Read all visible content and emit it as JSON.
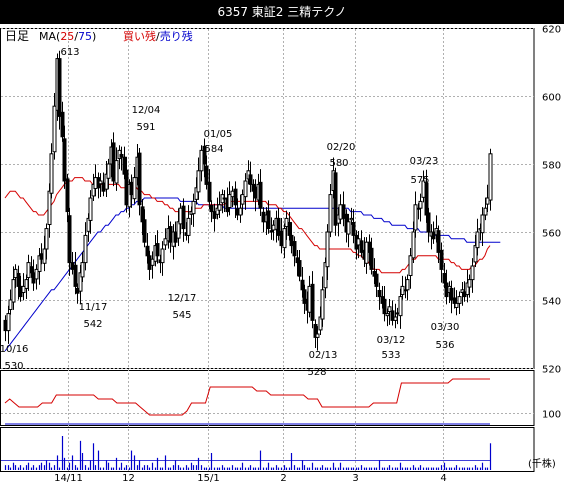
{
  "title": "6357 東証2 三精テクノ",
  "legend": {
    "period": "日足",
    "ma_prefix": "MA(",
    "ma_short": "25",
    "ma_sep": "/",
    "ma_long": "75",
    "ma_suffix": ")",
    "buy_label": "買い残",
    "sell_label": "売り残"
  },
  "colors": {
    "candle": "#000000",
    "ma_short": "#d40000",
    "ma_long": "#0000cc",
    "buy": "#d40000",
    "sell": "#0000cc",
    "volume": "#0000cc",
    "grid": "#b0b0b0"
  },
  "volume_unit": "(千株)",
  "chart_data": {
    "type": "candlestick",
    "price_axis": {
      "ticks": [
        620,
        600,
        580,
        560,
        540,
        520
      ],
      "range": [
        520,
        620
      ]
    },
    "margin_axis": {
      "ticks": [
        100
      ]
    },
    "x_tick_labels": [
      "14/11",
      "12",
      "15/1",
      "2",
      "3",
      "4"
    ],
    "series": [
      {
        "name": "日足",
        "close": [
          531,
          536,
          540,
          546,
          549,
          544,
          541,
          544,
          546,
          551,
          548,
          545,
          549,
          553,
          552,
          555,
          561,
          572,
          583,
          597,
          611,
          594,
          588,
          575,
          566,
          551,
          549,
          544,
          542,
          548,
          551,
          559,
          564,
          570,
          574,
          576,
          573,
          575,
          572,
          577,
          580,
          585,
          575,
          581,
          584,
          582,
          577,
          568,
          574,
          571,
          576,
          582,
          568,
          563,
          557,
          553,
          549,
          552,
          556,
          553,
          551,
          555,
          558,
          561,
          557,
          560,
          557,
          563,
          567,
          561,
          559,
          564,
          566,
          569,
          573,
          578,
          584,
          580,
          574,
          569,
          566,
          564,
          567,
          568,
          571,
          570,
          566,
          571,
          572,
          568,
          565,
          567,
          571,
          575,
          578,
          574,
          572,
          570,
          574,
          567,
          563,
          565,
          561,
          560,
          562,
          564,
          559,
          556,
          561,
          564,
          559,
          556,
          553,
          551,
          547,
          543,
          539,
          537,
          544,
          534,
          529,
          530,
          535,
          543,
          551,
          560,
          571,
          578,
          562,
          565,
          568,
          564,
          560,
          563,
          564,
          559,
          555,
          558,
          554,
          552,
          557,
          554,
          549,
          547,
          544,
          541,
          539,
          536,
          536,
          538,
          534,
          535,
          536,
          541,
          544,
          543,
          546,
          553,
          560,
          568,
          567,
          569,
          575,
          565,
          560,
          560,
          558,
          561,
          554,
          549,
          545,
          541,
          544,
          540,
          539,
          539,
          541,
          543,
          541,
          545,
          546,
          550,
          556,
          560,
          561,
          565,
          567,
          570,
          583
        ],
        "labels": [
          {
            "date": "10/16",
            "value": "530"
          },
          {
            "date": "11/17",
            "value": "542"
          },
          {
            "date": "12/17",
            "value": "545"
          },
          {
            "date": "02/13",
            "value": "528"
          },
          {
            "date": "03/12",
            "value": "533"
          },
          {
            "date": "03/30",
            "value": "536"
          },
          {
            "value": "613"
          },
          {
            "date": "12/04",
            "value": "591"
          },
          {
            "date": "01/05",
            "value": "584"
          },
          {
            "date": "02/20",
            "value": "580"
          },
          {
            "date": "03/23",
            "value": "575"
          }
        ]
      },
      {
        "name": "25",
        "values": [
          570,
          571,
          572,
          572,
          572,
          571,
          570,
          570,
          569,
          568,
          567,
          566,
          566,
          565,
          565,
          565,
          566,
          567,
          568,
          569,
          571,
          572,
          573,
          574,
          575,
          575,
          575,
          576,
          576,
          576,
          576,
          575,
          575,
          575,
          574,
          574,
          574,
          574,
          574,
          574,
          574,
          574,
          574,
          574,
          574,
          573,
          573,
          573,
          573,
          573,
          573,
          573,
          572,
          572,
          571,
          571,
          571,
          570,
          570,
          569,
          569,
          569,
          568,
          568,
          567,
          567,
          566,
          566,
          566,
          566,
          566,
          566,
          566,
          567,
          567,
          567,
          567,
          568,
          568,
          568,
          568,
          568,
          568,
          568,
          568,
          568,
          569,
          569,
          569,
          569,
          569,
          569,
          569,
          569,
          569,
          569,
          569,
          569,
          569,
          569,
          569,
          569,
          568,
          568,
          568,
          568,
          567,
          567,
          566,
          566,
          565,
          564,
          563,
          562,
          561,
          561,
          560,
          559,
          558,
          557,
          556,
          556,
          555,
          555,
          555,
          555,
          555,
          555,
          555,
          555,
          555,
          555,
          555,
          555,
          555,
          554,
          554,
          553,
          553,
          552,
          552,
          551,
          550,
          549,
          549,
          549,
          548,
          548,
          548,
          548,
          548,
          548,
          548,
          548,
          549,
          549,
          550,
          551,
          552,
          552,
          553,
          553,
          553,
          553,
          553,
          553,
          553,
          553,
          552,
          552,
          552,
          552,
          552,
          551,
          551,
          550,
          550,
          549,
          549,
          549,
          549,
          550,
          550,
          551,
          552,
          552,
          553,
          555,
          556
        ]
      },
      {
        "name": "75",
        "values": [
          525,
          526,
          527,
          528,
          529,
          530,
          531,
          532,
          533,
          534,
          535,
          536,
          537,
          538,
          539,
          540,
          541,
          542,
          543,
          543,
          544,
          545,
          546,
          547,
          548,
          549,
          550,
          551,
          552,
          553,
          554,
          555,
          556,
          557,
          558,
          559,
          560,
          560,
          561,
          562,
          562,
          563,
          564,
          565,
          565,
          566,
          566,
          567,
          567,
          568,
          568,
          569,
          569,
          569,
          570,
          570,
          570,
          570,
          570,
          570,
          570,
          570,
          570,
          570,
          570,
          570,
          570,
          570,
          569,
          569,
          569,
          569,
          569,
          569,
          569,
          568,
          568,
          568,
          568,
          568,
          568,
          568,
          568,
          568,
          568,
          567,
          567,
          567,
          567,
          567,
          567,
          567,
          567,
          567,
          567,
          567,
          567,
          567,
          567,
          567,
          567,
          567,
          567,
          567,
          567,
          567,
          567,
          567,
          567,
          567,
          567,
          567,
          567,
          567,
          567,
          567,
          567,
          567,
          567,
          567,
          567,
          567,
          567,
          567,
          567,
          567,
          567,
          567,
          567,
          567,
          567,
          567,
          567,
          567,
          566,
          566,
          566,
          566,
          566,
          565,
          565,
          565,
          565,
          564,
          564,
          564,
          564,
          563,
          563,
          563,
          562,
          562,
          562,
          562,
          562,
          562,
          561,
          561,
          561,
          561,
          561,
          560,
          560,
          560,
          560,
          560,
          560,
          559,
          559,
          559,
          559,
          559,
          559,
          558,
          558,
          558,
          558,
          558,
          558,
          557,
          557,
          557,
          557,
          557,
          557,
          557,
          557,
          557,
          557,
          557,
          557,
          557,
          557
        ]
      },
      {
        "name": "買い残",
        "values": [
          3,
          4,
          3,
          2,
          2,
          2,
          2,
          2,
          3,
          3,
          3,
          5,
          5,
          5,
          5,
          5,
          5,
          5,
          5,
          5,
          4,
          4,
          4,
          4,
          3,
          3,
          3,
          3,
          3,
          2,
          1,
          0,
          0,
          0,
          0,
          0,
          0,
          0,
          0,
          1,
          3,
          3,
          3,
          3,
          7,
          7,
          7,
          7,
          7,
          7,
          7,
          7,
          7,
          7,
          6,
          6,
          6,
          5,
          5,
          5,
          5,
          5,
          5,
          5,
          5,
          4,
          4,
          4,
          2,
          2,
          2,
          2,
          2,
          2,
          2,
          2,
          2,
          2,
          2,
          3,
          3,
          3,
          3,
          3,
          3,
          8,
          8,
          8,
          8,
          8,
          8,
          8,
          8,
          8,
          8,
          8,
          9,
          9,
          9,
          9,
          9,
          9,
          9,
          9,
          9
        ]
      },
      {
        "name": "売り残",
        "values": [
          0,
          0,
          0,
          0,
          0,
          0,
          0,
          0,
          0,
          0,
          0,
          0,
          0,
          0,
          0,
          0,
          0,
          0,
          0,
          0,
          0,
          0,
          0,
          0,
          0,
          0,
          0,
          0,
          0,
          0,
          0,
          0,
          0,
          0,
          0,
          0,
          0,
          0,
          0,
          0,
          0,
          0,
          0,
          0,
          0,
          0,
          0,
          0,
          0,
          0,
          0,
          0,
          0,
          0,
          0,
          0,
          0,
          0,
          0,
          0,
          0,
          0,
          0,
          0,
          0,
          0,
          0,
          0,
          0,
          0,
          0,
          0,
          0,
          0,
          0,
          0,
          0,
          0,
          0,
          0,
          0,
          0,
          0,
          0,
          0,
          0,
          0,
          0,
          0,
          0,
          0,
          0,
          0,
          0,
          0,
          0,
          0,
          0,
          0,
          0,
          0,
          0,
          0,
          0,
          0
        ]
      },
      {
        "name": "(千株)",
        "values": [
          2,
          2,
          1,
          3,
          2,
          1,
          2,
          1,
          2,
          3,
          1,
          2,
          1,
          2,
          3,
          2,
          4,
          3,
          1,
          2,
          6,
          1,
          14,
          5,
          1,
          3,
          6,
          2,
          1,
          12,
          7,
          2,
          1,
          4,
          11,
          2,
          8,
          1,
          1,
          4,
          3,
          1,
          1,
          5,
          1,
          3,
          1,
          2,
          1,
          8,
          6,
          2,
          4,
          1,
          2,
          2,
          1,
          3,
          1,
          5,
          1,
          1,
          6,
          1,
          1,
          2,
          4,
          2,
          1,
          1,
          2,
          1,
          3,
          2,
          2,
          5,
          2,
          1,
          1,
          1,
          7,
          1,
          1,
          1,
          2,
          1,
          1,
          1,
          2,
          1,
          1,
          1,
          3,
          1,
          1,
          2,
          1,
          1,
          1,
          8,
          1,
          1,
          3,
          1,
          1,
          2,
          1,
          1,
          2,
          1,
          1,
          7,
          2,
          1,
          1,
          4,
          2,
          1,
          1,
          3,
          1,
          1,
          1,
          2,
          1,
          1,
          1,
          3,
          1,
          1,
          3,
          1,
          1,
          1,
          1,
          1,
          1,
          1,
          2,
          1,
          1,
          1,
          1,
          1,
          1,
          4,
          1,
          1,
          1,
          2,
          1,
          1,
          1,
          3,
          1,
          1,
          1,
          1,
          2,
          1,
          1,
          2,
          1,
          1,
          1,
          1,
          1,
          1,
          1,
          2,
          3,
          1,
          1,
          1,
          1,
          2,
          1,
          1,
          1,
          1,
          1,
          1,
          2,
          1,
          1,
          3,
          1,
          1,
          11
        ]
      }
    ]
  }
}
